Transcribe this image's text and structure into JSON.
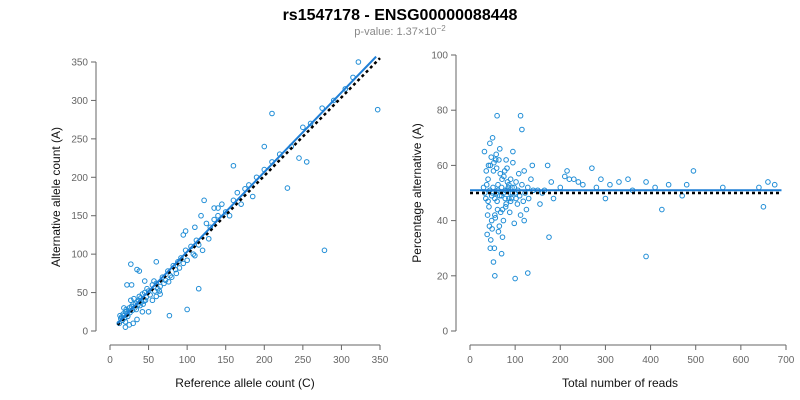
{
  "figure": {
    "title": "rs1547178 - ENSG00000088448",
    "subtitle_prefix": "p-value: 1.37×10",
    "subtitle_exp": "−2"
  },
  "colors": {
    "points": "#1f8dd6",
    "fit_line": "#1f7fd6",
    "reference_line": "#000000",
    "axes": "#666666"
  },
  "chart_data": [
    {
      "type": "scatter",
      "xlabel": "Reference allele count (C)",
      "ylabel": "Alternative allele count (A)",
      "xlim": [
        0,
        350
      ],
      "ylim": [
        0,
        350
      ],
      "xticks": [
        0,
        50,
        100,
        150,
        200,
        250,
        300,
        350
      ],
      "yticks": [
        0,
        50,
        100,
        150,
        200,
        250,
        300,
        350
      ],
      "fit_line": {
        "style": "solid",
        "points": [
          [
            10,
            10
          ],
          [
            345,
            357
          ]
        ]
      },
      "reference_line": {
        "style": "dotted",
        "points": [
          [
            10,
            8
          ],
          [
            350,
            355
          ]
        ]
      },
      "points": [
        [
          16,
          14
        ],
        [
          18,
          20
        ],
        [
          20,
          25
        ],
        [
          15,
          18
        ],
        [
          22,
          22
        ],
        [
          25,
          30
        ],
        [
          19,
          17
        ],
        [
          17,
          22
        ],
        [
          21,
          28
        ],
        [
          24,
          26
        ],
        [
          12,
          10
        ],
        [
          14,
          16
        ],
        [
          13,
          20
        ],
        [
          26,
          24
        ],
        [
          28,
          32
        ],
        [
          30,
          35
        ],
        [
          27,
          40
        ],
        [
          23,
          19
        ],
        [
          18,
          30
        ],
        [
          20,
          12
        ],
        [
          29,
          27
        ],
        [
          32,
          30
        ],
        [
          35,
          38
        ],
        [
          31,
          42
        ],
        [
          33,
          36
        ],
        [
          36,
          34
        ],
        [
          38,
          45
        ],
        [
          40,
          43
        ],
        [
          34,
          28
        ],
        [
          37,
          40
        ],
        [
          42,
          48
        ],
        [
          45,
          50
        ],
        [
          44,
          39
        ],
        [
          47,
          44
        ],
        [
          50,
          52
        ],
        [
          48,
          55
        ],
        [
          43,
          35
        ],
        [
          52,
          47
        ],
        [
          55,
          60
        ],
        [
          58,
          52
        ],
        [
          46,
          40
        ],
        [
          41,
          38
        ],
        [
          39,
          33
        ],
        [
          60,
          62
        ],
        [
          62,
          55
        ],
        [
          57,
          65
        ],
        [
          65,
          58
        ],
        [
          68,
          70
        ],
        [
          70,
          62
        ],
        [
          64,
          52
        ],
        [
          72,
          66
        ],
        [
          75,
          78
        ],
        [
          78,
          72
        ],
        [
          80,
          70
        ],
        [
          76,
          64
        ],
        [
          82,
          85
        ],
        [
          85,
          80
        ],
        [
          88,
          90
        ],
        [
          90,
          82
        ],
        [
          86,
          75
        ],
        [
          92,
          95
        ],
        [
          95,
          88
        ],
        [
          98,
          105
        ],
        [
          100,
          92
        ],
        [
          105,
          110
        ],
        [
          110,
          98
        ],
        [
          115,
          112
        ],
        [
          120,
          105
        ],
        [
          112,
          118
        ],
        [
          108,
          100
        ],
        [
          125,
          140
        ],
        [
          130,
          135
        ],
        [
          135,
          145
        ],
        [
          140,
          150
        ],
        [
          145,
          165
        ],
        [
          150,
          155
        ],
        [
          160,
          170
        ],
        [
          165,
          180
        ],
        [
          175,
          185
        ],
        [
          180,
          190
        ],
        [
          185,
          175
        ],
        [
          190,
          200
        ],
        [
          200,
          210
        ],
        [
          210,
          220
        ],
        [
          220,
          230
        ],
        [
          235,
          240
        ],
        [
          250,
          265
        ],
        [
          260,
          270
        ],
        [
          275,
          290
        ],
        [
          290,
          300
        ],
        [
          305,
          315
        ],
        [
          315,
          330
        ],
        [
          322,
          350
        ],
        [
          230,
          186
        ],
        [
          278,
          105
        ],
        [
          347,
          288
        ],
        [
          100,
          28
        ],
        [
          77,
          20
        ],
        [
          115,
          55
        ],
        [
          27,
          87
        ],
        [
          22,
          60
        ],
        [
          38,
          78
        ],
        [
          60,
          90
        ],
        [
          210,
          283
        ],
        [
          160,
          215
        ],
        [
          200,
          240
        ],
        [
          245,
          225
        ],
        [
          255,
          220
        ],
        [
          122,
          170
        ],
        [
          140,
          160
        ],
        [
          135,
          160
        ],
        [
          98,
          130
        ],
        [
          118,
          150
        ],
        [
          170,
          165
        ],
        [
          155,
          150
        ],
        [
          128,
          120
        ],
        [
          110,
          135
        ],
        [
          95,
          125
        ],
        [
          35,
          80
        ],
        [
          45,
          65
        ],
        [
          55,
          40
        ],
        [
          60,
          45
        ],
        [
          65,
          48
        ],
        [
          42,
          25
        ],
        [
          30,
          10
        ],
        [
          25,
          8
        ],
        [
          20,
          5
        ],
        [
          35,
          15
        ],
        [
          50,
          25
        ],
        [
          28,
          60
        ]
      ]
    },
    {
      "type": "scatter",
      "xlabel": "Total number of reads",
      "ylabel": "Percentage alternative (A)",
      "xlim": [
        0,
        700
      ],
      "ylim": [
        0,
        100
      ],
      "xticks": [
        0,
        100,
        200,
        300,
        400,
        500,
        600,
        700
      ],
      "yticks": [
        0,
        20,
        40,
        60,
        80,
        100
      ],
      "fit_line": {
        "style": "solid",
        "points": [
          [
            0,
            51
          ],
          [
            690,
            51
          ]
        ]
      },
      "reference_line": {
        "style": "dotted",
        "points": [
          [
            0,
            50
          ],
          [
            690,
            50
          ]
        ]
      },
      "points": [
        [
          30,
          52
        ],
        [
          35,
          48
        ],
        [
          40,
          55
        ],
        [
          42,
          45
        ],
        [
          45,
          60
        ],
        [
          48,
          40
        ],
        [
          50,
          50
        ],
        [
          52,
          58
        ],
        [
          55,
          42
        ],
        [
          57,
          62
        ],
        [
          60,
          47
        ],
        [
          62,
          53
        ],
        [
          65,
          38
        ],
        [
          67,
          57
        ],
        [
          70,
          49
        ],
        [
          72,
          44
        ],
        [
          75,
          56
        ],
        [
          78,
          51
        ],
        [
          80,
          46
        ],
        [
          82,
          59
        ],
        [
          85,
          52
        ],
        [
          88,
          43
        ],
        [
          90,
          55
        ],
        [
          92,
          48
        ],
        [
          95,
          61
        ],
        [
          98,
          39
        ],
        [
          100,
          50
        ],
        [
          102,
          54
        ],
        [
          105,
          46
        ],
        [
          108,
          57
        ],
        [
          110,
          49
        ],
        [
          112,
          42
        ],
        [
          115,
          53
        ],
        [
          118,
          47
        ],
        [
          120,
          58
        ],
        [
          122,
          50
        ],
        [
          125,
          44
        ],
        [
          128,
          52
        ],
        [
          130,
          48
        ],
        [
          135,
          55
        ],
        [
          32,
          65
        ],
        [
          38,
          35
        ],
        [
          44,
          68
        ],
        [
          46,
          33
        ],
        [
          50,
          70
        ],
        [
          54,
          30
        ],
        [
          58,
          64
        ],
        [
          63,
          36
        ],
        [
          66,
          66
        ],
        [
          72,
          34
        ],
        [
          36,
          58
        ],
        [
          39,
          42
        ],
        [
          41,
          60
        ],
        [
          43,
          38
        ],
        [
          47,
          63
        ],
        [
          49,
          37
        ],
        [
          53,
          61
        ],
        [
          56,
          41
        ],
        [
          59,
          59
        ],
        [
          61,
          44
        ],
        [
          64,
          62
        ],
        [
          68,
          43
        ],
        [
          71,
          55
        ],
        [
          74,
          40
        ],
        [
          77,
          58
        ],
        [
          79,
          45
        ],
        [
          83,
          54
        ],
        [
          86,
          48
        ],
        [
          89,
          50
        ],
        [
          93,
          52
        ],
        [
          33,
          50
        ],
        [
          37,
          53
        ],
        [
          40,
          47
        ],
        [
          44,
          51
        ],
        [
          48,
          49
        ],
        [
          51,
          52
        ],
        [
          55,
          48
        ],
        [
          58,
          50
        ],
        [
          62,
          51
        ],
        [
          66,
          49
        ],
        [
          70,
          52
        ],
        [
          74,
          50
        ],
        [
          78,
          48
        ],
        [
          82,
          51
        ],
        [
          86,
          53
        ],
        [
          90,
          47
        ],
        [
          94,
          50
        ],
        [
          98,
          52
        ],
        [
          102,
          48
        ],
        [
          106,
          51
        ],
        [
          60,
          78
        ],
        [
          112,
          78
        ],
        [
          115,
          73
        ],
        [
          138,
          60
        ],
        [
          150,
          51
        ],
        [
          155,
          46
        ],
        [
          165,
          51
        ],
        [
          172,
          60
        ],
        [
          200,
          52
        ],
        [
          215,
          58
        ],
        [
          230,
          55
        ],
        [
          250,
          53
        ],
        [
          270,
          59
        ],
        [
          290,
          55
        ],
        [
          310,
          53
        ],
        [
          330,
          54
        ],
        [
          350,
          55
        ],
        [
          390,
          54
        ],
        [
          410,
          52
        ],
        [
          440,
          53
        ],
        [
          470,
          49
        ],
        [
          480,
          53
        ],
        [
          495,
          58
        ],
        [
          560,
          52
        ],
        [
          640,
          52
        ],
        [
          650,
          45
        ],
        [
          660,
          54
        ],
        [
          675,
          53
        ],
        [
          425,
          44
        ],
        [
          390,
          27
        ],
        [
          100,
          19
        ],
        [
          128,
          21
        ],
        [
          55,
          20
        ],
        [
          175,
          34
        ],
        [
          140,
          51
        ],
        [
          160,
          50
        ],
        [
          180,
          54
        ],
        [
          210,
          56
        ],
        [
          240,
          54
        ],
        [
          280,
          52
        ],
        [
          95,
          65
        ],
        [
          80,
          62
        ],
        [
          70,
          28
        ],
        [
          45,
          30
        ],
        [
          52,
          25
        ],
        [
          120,
          40
        ],
        [
          185,
          48
        ],
        [
          220,
          55
        ],
        [
          300,
          48
        ],
        [
          360,
          51
        ]
      ]
    }
  ]
}
